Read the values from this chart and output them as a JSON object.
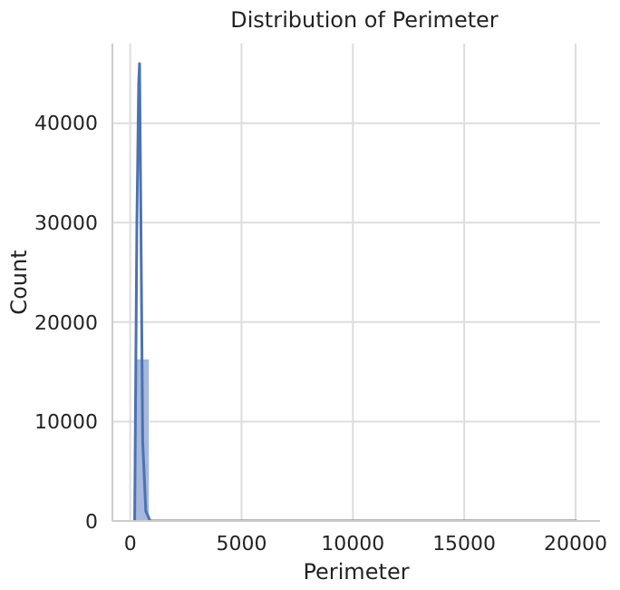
{
  "chart_data": {
    "type": "histogram",
    "title": "Distribution of Perimeter",
    "xlabel": "Perimeter",
    "ylabel": "Count",
    "bins": [
      200,
      862,
      1524,
      2186,
      2848,
      3510,
      4172,
      4834,
      5496,
      6158,
      6820,
      7482,
      8144,
      8806,
      9468,
      10130,
      10792,
      11454,
      12116,
      12778,
      13440,
      14102,
      14764,
      15426,
      16088,
      16750,
      17412,
      18074,
      18736,
      19398,
      20060
    ],
    "values": [
      16300,
      0,
      0,
      0,
      0,
      0,
      0,
      0,
      0,
      0,
      0,
      0,
      0,
      0,
      0,
      0,
      0,
      0,
      0,
      0,
      0,
      0,
      0,
      0,
      0,
      0,
      0,
      0,
      0,
      0
    ],
    "color": "#a6b9dc",
    "series": [
      {
        "type": "line",
        "color": "#4c72b0",
        "x": [
          200,
          300,
          380,
          420,
          480,
          560,
          700,
          900,
          20060
        ],
        "values": [
          0,
          30000,
          44000,
          46000,
          30000,
          8000,
          1000,
          0,
          0
        ]
      }
    ],
    "xlim": [
      -800,
      21100
    ],
    "xticks": [
      0,
      5000,
      10000,
      15000,
      20000
    ],
    "ylim": [
      0,
      48000
    ],
    "yticks": [
      0,
      10000,
      20000,
      30000,
      40000
    ],
    "grid": true
  }
}
